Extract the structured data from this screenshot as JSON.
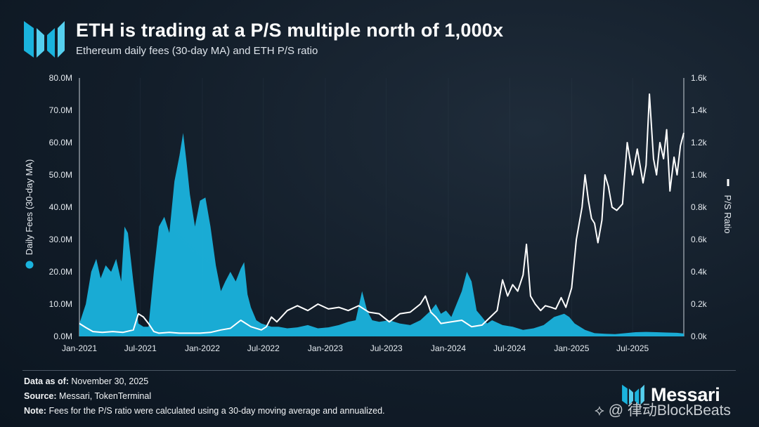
{
  "header": {
    "title": "ETH is trading at a P/S multiple north of 1,000x",
    "subtitle": "Ethereum daily fees (30-day MA) and ETH P/S ratio"
  },
  "footer": {
    "asof_label": "Data as of:",
    "asof_value": "November 30, 2025",
    "source_label": "Source:",
    "source_value": "Messari, TokenTerminal",
    "note_label": "Note:",
    "note_value": "Fees for the P/S ratio were calculated using a 30-day moving average and annualized."
  },
  "brand": {
    "name": "Messari"
  },
  "watermark": "律动BlockBeats",
  "colors": {
    "fees": "#1ab3dd",
    "ps": "#ffffff",
    "background": "#121d29",
    "grid": "#3a4a5a"
  },
  "chart_data": {
    "type": "area",
    "title": "ETH is trading at a P/S multiple north of 1,000x",
    "subtitle": "Ethereum daily fees (30-day MA) and ETH P/S ratio",
    "x_tick_labels": [
      "Jan-2021",
      "Jul-2021",
      "Jan-2022",
      "Jul-2022",
      "Jan-2023",
      "Jul-2023",
      "Jan-2024",
      "Jul-2024",
      "Jan-2025",
      "Jul-2025"
    ],
    "x_range": [
      "2021-01-01",
      "2025-11-30"
    ],
    "y_left": {
      "label": "Daily Fees (30-day MA)",
      "range": [
        0,
        80000000
      ],
      "tick_labels": [
        "0.0M",
        "10.0M",
        "20.0M",
        "30.0M",
        "40.0M",
        "50.0M",
        "60.0M",
        "70.0M",
        "80.0M"
      ]
    },
    "y_right": {
      "label": "P/S Ratio",
      "range": [
        0,
        1600
      ],
      "tick_labels": [
        "0.0k",
        "0.2k",
        "0.4k",
        "0.6k",
        "0.8k",
        "1.0k",
        "1.2k",
        "1.4k",
        "1.6k"
      ]
    },
    "legend": {
      "position": "axes",
      "left_marker": "filled-circle",
      "right_marker": "line"
    },
    "grid": "vertical",
    "series": [
      {
        "name": "Daily Fees (30-day MA)",
        "axis": "left",
        "type": "area",
        "x": [
          "2021-01-01",
          "2021-01-20",
          "2021-02-05",
          "2021-02-20",
          "2021-03-05",
          "2021-03-20",
          "2021-04-05",
          "2021-04-20",
          "2021-05-05",
          "2021-05-15",
          "2021-05-25",
          "2021-06-10",
          "2021-06-25",
          "2021-07-10",
          "2021-07-25",
          "2021-08-10",
          "2021-08-25",
          "2021-09-10",
          "2021-09-25",
          "2021-10-10",
          "2021-10-25",
          "2021-11-05",
          "2021-11-15",
          "2021-11-25",
          "2021-12-10",
          "2021-12-25",
          "2022-01-10",
          "2022-01-25",
          "2022-02-10",
          "2022-02-25",
          "2022-03-10",
          "2022-03-25",
          "2022-04-10",
          "2022-04-25",
          "2022-05-05",
          "2022-05-15",
          "2022-05-25",
          "2022-06-10",
          "2022-06-25",
          "2022-07-10",
          "2022-07-25",
          "2022-08-15",
          "2022-09-10",
          "2022-10-10",
          "2022-11-10",
          "2022-12-10",
          "2023-01-10",
          "2023-02-10",
          "2023-03-10",
          "2023-04-01",
          "2023-04-20",
          "2023-05-05",
          "2023-05-20",
          "2023-06-10",
          "2023-07-10",
          "2023-08-10",
          "2023-09-10",
          "2023-10-10",
          "2023-11-10",
          "2023-11-25",
          "2023-12-10",
          "2023-12-25",
          "2024-01-10",
          "2024-02-10",
          "2024-02-25",
          "2024-03-10",
          "2024-03-25",
          "2024-04-10",
          "2024-04-25",
          "2024-05-10",
          "2024-06-10",
          "2024-07-10",
          "2024-08-10",
          "2024-09-10",
          "2024-10-10",
          "2024-11-10",
          "2024-12-10",
          "2024-12-25",
          "2025-01-10",
          "2025-02-10",
          "2025-03-10",
          "2025-04-10",
          "2025-05-10",
          "2025-06-10",
          "2025-07-10",
          "2025-08-10",
          "2025-09-10",
          "2025-10-10",
          "2025-11-10",
          "2025-11-30"
        ],
        "values": [
          4000000,
          10000000,
          20000000,
          24000000,
          18000000,
          22000000,
          20000000,
          24000000,
          17000000,
          34000000,
          32000000,
          17000000,
          4000000,
          3000000,
          3000000,
          20000000,
          34000000,
          37000000,
          32000000,
          48000000,
          56000000,
          63000000,
          54000000,
          44000000,
          34000000,
          42000000,
          43000000,
          34000000,
          22000000,
          14000000,
          17000000,
          20000000,
          17000000,
          21000000,
          23000000,
          13000000,
          9000000,
          5000000,
          4000000,
          3500000,
          3000000,
          3000000,
          2500000,
          2800000,
          3500000,
          2500000,
          2800000,
          3500000,
          4500000,
          5000000,
          14000000,
          8000000,
          5000000,
          4500000,
          5000000,
          4000000,
          3500000,
          5000000,
          8000000,
          10000000,
          7000000,
          8000000,
          6000000,
          14000000,
          20000000,
          17000000,
          8000000,
          6000000,
          4000000,
          5000000,
          3500000,
          3000000,
          2000000,
          2500000,
          3500000,
          6000000,
          7000000,
          6000000,
          4000000,
          2000000,
          1000000,
          800000,
          700000,
          1000000,
          1300000,
          1400000,
          1300000,
          1200000,
          1100000,
          900000
        ]
      },
      {
        "name": "P/S Ratio",
        "axis": "right",
        "type": "line",
        "x": [
          "2021-01-01",
          "2021-01-20",
          "2021-02-10",
          "2021-03-10",
          "2021-04-10",
          "2021-05-10",
          "2021-06-10",
          "2021-06-25",
          "2021-07-10",
          "2021-07-25",
          "2021-08-10",
          "2021-08-25",
          "2021-09-25",
          "2021-10-25",
          "2021-11-25",
          "2021-12-25",
          "2022-01-25",
          "2022-02-25",
          "2022-03-25",
          "2022-04-25",
          "2022-05-25",
          "2022-06-25",
          "2022-07-10",
          "2022-07-25",
          "2022-08-10",
          "2022-09-10",
          "2022-10-10",
          "2022-11-10",
          "2022-12-10",
          "2023-01-10",
          "2023-02-10",
          "2023-03-10",
          "2023-04-10",
          "2023-05-10",
          "2023-06-10",
          "2023-07-10",
          "2023-08-10",
          "2023-09-10",
          "2023-10-10",
          "2023-10-25",
          "2023-11-10",
          "2023-11-25",
          "2023-12-10",
          "2024-01-10",
          "2024-02-10",
          "2024-03-10",
          "2024-04-10",
          "2024-05-10",
          "2024-05-25",
          "2024-06-10",
          "2024-06-25",
          "2024-07-10",
          "2024-07-25",
          "2024-08-10",
          "2024-08-20",
          "2024-09-01",
          "2024-09-15",
          "2024-10-01",
          "2024-10-15",
          "2024-11-01",
          "2024-11-15",
          "2024-12-01",
          "2024-12-15",
          "2025-01-01",
          "2025-01-15",
          "2025-02-01",
          "2025-02-10",
          "2025-02-20",
          "2025-03-01",
          "2025-03-10",
          "2025-03-20",
          "2025-04-01",
          "2025-04-10",
          "2025-04-20",
          "2025-05-01",
          "2025-05-15",
          "2025-06-01",
          "2025-06-15",
          "2025-07-01",
          "2025-07-15",
          "2025-08-01",
          "2025-08-10",
          "2025-08-20",
          "2025-09-01",
          "2025-09-10",
          "2025-09-20",
          "2025-10-01",
          "2025-10-10",
          "2025-10-20",
          "2025-11-01",
          "2025-11-10",
          "2025-11-20",
          "2025-11-30"
        ],
        "values": [
          80,
          55,
          30,
          25,
          30,
          25,
          40,
          140,
          120,
          80,
          30,
          20,
          25,
          20,
          20,
          20,
          25,
          40,
          50,
          100,
          60,
          40,
          60,
          120,
          90,
          160,
          190,
          160,
          200,
          170,
          180,
          160,
          190,
          150,
          140,
          90,
          140,
          150,
          200,
          250,
          150,
          120,
          80,
          90,
          100,
          60,
          70,
          130,
          160,
          350,
          250,
          320,
          280,
          380,
          570,
          250,
          200,
          160,
          190,
          180,
          170,
          240,
          180,
          300,
          600,
          800,
          1000,
          840,
          730,
          700,
          580,
          720,
          1000,
          930,
          800,
          780,
          820,
          1200,
          1000,
          1160,
          950,
          1060,
          1500,
          1100,
          1000,
          1200,
          1100,
          1280,
          900,
          1110,
          1000,
          1180,
          1260
        ]
      }
    ]
  }
}
